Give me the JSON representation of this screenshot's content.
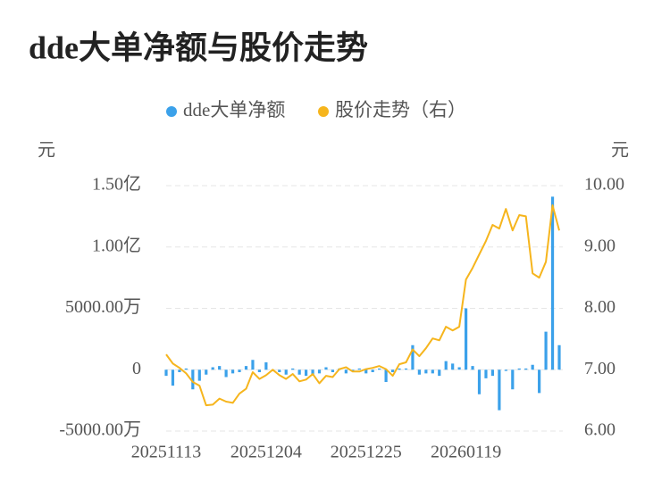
{
  "chart_data": {
    "type": "combo",
    "title": "dde大单净额与股价走势",
    "y_label": "元",
    "y2_label": "元",
    "categories": [
      "20251113",
      null,
      null,
      null,
      null,
      null,
      null,
      null,
      null,
      null,
      null,
      null,
      null,
      null,
      null,
      "20251204",
      null,
      null,
      null,
      null,
      null,
      null,
      null,
      null,
      null,
      null,
      null,
      null,
      null,
      null,
      "20251225",
      null,
      null,
      null,
      null,
      null,
      null,
      null,
      null,
      null,
      null,
      null,
      null,
      null,
      null,
      "20260119",
      null,
      null,
      null,
      null,
      null,
      null,
      null,
      null,
      null,
      null,
      null,
      null,
      null,
      null
    ],
    "series": [
      {
        "name": "dde大单净额",
        "type": "bar",
        "color": "#3ba1ea",
        "values": [
          -5000000,
          -13000000,
          -2000000,
          1000000,
          -16000000,
          -9000000,
          -4000000,
          2000000,
          3000000,
          -6000000,
          -3000000,
          -2000000,
          3000000,
          8000000,
          -2000000,
          6000000,
          -1000000,
          -2000000,
          -4000000,
          1000000,
          -4000000,
          -5000000,
          -4000000,
          -3000000,
          2000000,
          -2000000,
          1000000,
          -3000000,
          -1000000,
          1000000,
          -3000000,
          -2000000,
          1000000,
          -10000000,
          -2000000,
          1000000,
          1000000,
          20000000,
          -4000000,
          -3000000,
          -3000000,
          -5000000,
          7000000,
          5000000,
          2000000,
          50000000,
          3000000,
          -20000000,
          -7000000,
          -5000000,
          -33000000,
          -1000000,
          -16000000,
          1000000,
          1000000,
          4000000,
          -19000000,
          31000000,
          141000000,
          20000000
        ]
      },
      {
        "name": "股价走势（右）",
        "type": "line",
        "axis": "y2",
        "color": "#f6b51d",
        "values": [
          7.25,
          7.1,
          7.03,
          6.94,
          6.8,
          6.74,
          6.42,
          6.43,
          6.53,
          6.48,
          6.46,
          6.61,
          6.69,
          6.96,
          6.85,
          6.91,
          7.0,
          6.91,
          6.85,
          6.93,
          6.81,
          6.84,
          6.93,
          6.78,
          6.9,
          6.88,
          7.01,
          7.04,
          6.97,
          6.97,
          7.01,
          7.03,
          7.06,
          7.01,
          6.9,
          7.09,
          7.12,
          7.33,
          7.22,
          7.35,
          7.51,
          7.48,
          7.7,
          7.64,
          7.7,
          8.47,
          8.66,
          8.88,
          9.1,
          9.36,
          9.3,
          9.62,
          9.27,
          9.52,
          9.5,
          8.57,
          8.5,
          8.76,
          9.68,
          9.27
        ]
      }
    ],
    "ylim": [
      -50000000,
      150000000
    ],
    "yticks": [
      {
        "value": -50000000,
        "label": "-5000.00万"
      },
      0,
      {
        "value": 50000000,
        "label": "5000.00万"
      },
      {
        "value": 100000000,
        "label": "1.00亿"
      },
      {
        "value": 150000000,
        "label": "1.50亿"
      }
    ],
    "y2lim": [
      6,
      10
    ],
    "y2ticks": [
      {
        "value": 6,
        "label": "6.00"
      },
      {
        "value": 7,
        "label": "7.00"
      },
      {
        "value": 8,
        "label": "8.00"
      },
      {
        "value": 9,
        "label": "9.00"
      },
      {
        "value": 10,
        "label": "10.00"
      }
    ],
    "grid": true
  }
}
